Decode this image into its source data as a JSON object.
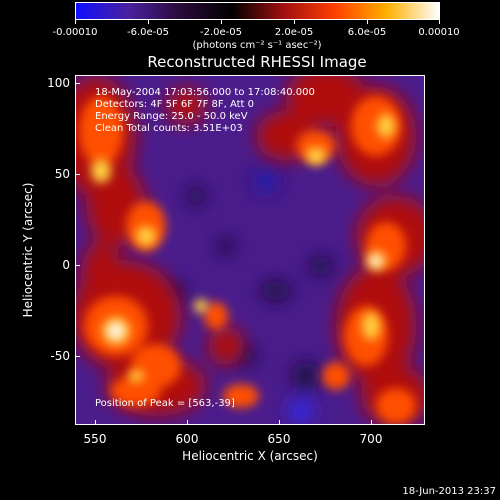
{
  "colorbar": {
    "tick_labels": [
      "-0.00010",
      "-6.0e-05",
      "-2.0e-05",
      "2.0e-05",
      "6.0e-05",
      "0.00010"
    ],
    "units": "(photons cm⁻² s⁻¹ asec⁻²)",
    "colors": [
      "#1010ff",
      "#4a20a0",
      "#2a0a3a",
      "#000000",
      "#a01010",
      "#ff4000",
      "#ffb000",
      "#ffffff"
    ]
  },
  "title": "Reconstructed RHESSI Image",
  "annotations": {
    "time_range": "18-May-2004 17:03:56.000 to 17:08:40.000",
    "detectors": "Detectors: 4F 5F 6F 7F 8F, Att 0",
    "energy_range": "Energy Range: 25.0 - 50.0 keV",
    "clean": "Clean    Total counts: 3.51E+03",
    "peak": "Position of Peak = [563,-39]"
  },
  "axes": {
    "xlabel": "Heliocentric X (arcsec)",
    "ylabel": "Heliocentric Y (arcsec)",
    "xticks": [
      "550",
      "600",
      "650",
      "700"
    ],
    "yticks": [
      "100",
      "50",
      "0",
      "-50"
    ],
    "xlim": [
      540,
      730
    ],
    "ylim": [
      -88,
      104
    ]
  },
  "datestamp": "18-Jun-2013 23:37"
}
